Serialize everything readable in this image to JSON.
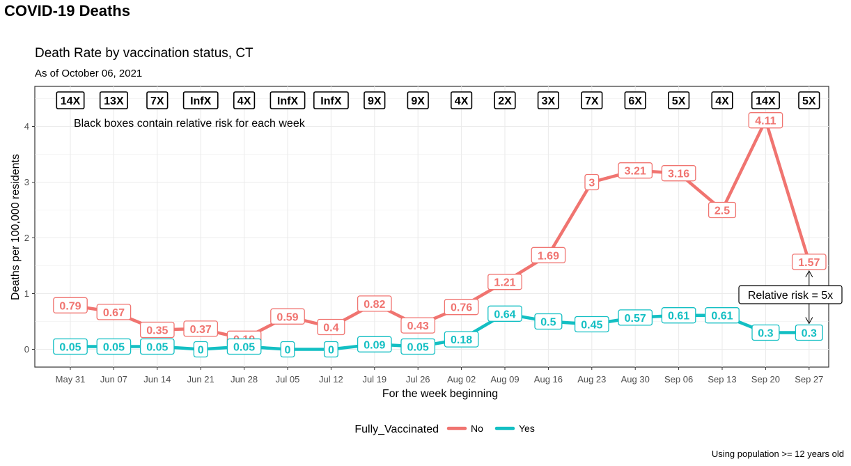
{
  "page": {
    "heading": "COVID-19 Deaths",
    "footnote": "Using population >= 12 years old"
  },
  "colors": {
    "no": "#f07470",
    "yes": "#13bfc3",
    "grid": "#ebebeb",
    "text": "#4d4d4d"
  },
  "chart_data": {
    "type": "line",
    "title": "Death Rate by vaccination status, CT",
    "subtitle": "As of October 06, 2021",
    "xlabel": "For the week beginning",
    "ylabel": "Deaths per 100,000 residents",
    "ylim": [
      -0.3,
      4.6
    ],
    "yticks": [
      0,
      1,
      2,
      3,
      4
    ],
    "grid": true,
    "legend": {
      "title": "Fully_Vaccinated",
      "placement": "bottom",
      "entries": [
        "No",
        "Yes"
      ]
    },
    "categories": [
      "May 31",
      "Jun 07",
      "Jun 14",
      "Jun 21",
      "Jun 28",
      "Jul 05",
      "Jul 12",
      "Jul 19",
      "Jul 26",
      "Aug 02",
      "Aug 09",
      "Aug 16",
      "Aug 23",
      "Aug 30",
      "Sep 06",
      "Sep 13",
      "Sep 20",
      "Sep 27"
    ],
    "series": [
      {
        "name": "No",
        "values": [
          0.79,
          0.67,
          0.35,
          0.37,
          0.19,
          0.59,
          0.4,
          0.82,
          0.43,
          0.76,
          1.21,
          1.69,
          3,
          3.21,
          3.16,
          2.5,
          4.11,
          1.57
        ],
        "labels": [
          "0.79",
          "0.67",
          "0.35",
          "0.37",
          "0.19",
          "0.59",
          "0.4",
          "0.82",
          "0.43",
          "0.76",
          "1.21",
          "1.69",
          "3",
          "3.21",
          "3.16",
          "2.5",
          "4.11",
          "1.57"
        ]
      },
      {
        "name": "Yes",
        "values": [
          0.05,
          0.05,
          0.05,
          0,
          0.05,
          0,
          0,
          0.09,
          0.05,
          0.18,
          0.64,
          0.5,
          0.45,
          0.57,
          0.61,
          0.61,
          0.3,
          0.3
        ],
        "labels": [
          "0.05",
          "0.05",
          "0.05",
          "0",
          "0.05",
          "0",
          "0",
          "0.09",
          "0.05",
          "0.18",
          "0.64",
          "0.5",
          "0.45",
          "0.57",
          "0.61",
          "0.61",
          "0.3",
          "0.3"
        ]
      }
    ],
    "relative_risk": [
      "14X",
      "13X",
      "7X",
      "InfX",
      "4X",
      "InfX",
      "InfX",
      "9X",
      "9X",
      "4X",
      "2X",
      "3X",
      "7X",
      "6X",
      "5X",
      "4X",
      "14X",
      "5X"
    ],
    "annotations": {
      "note": "Black boxes contain relative risk for each week",
      "callout": "Relative risk = 5x"
    }
  }
}
